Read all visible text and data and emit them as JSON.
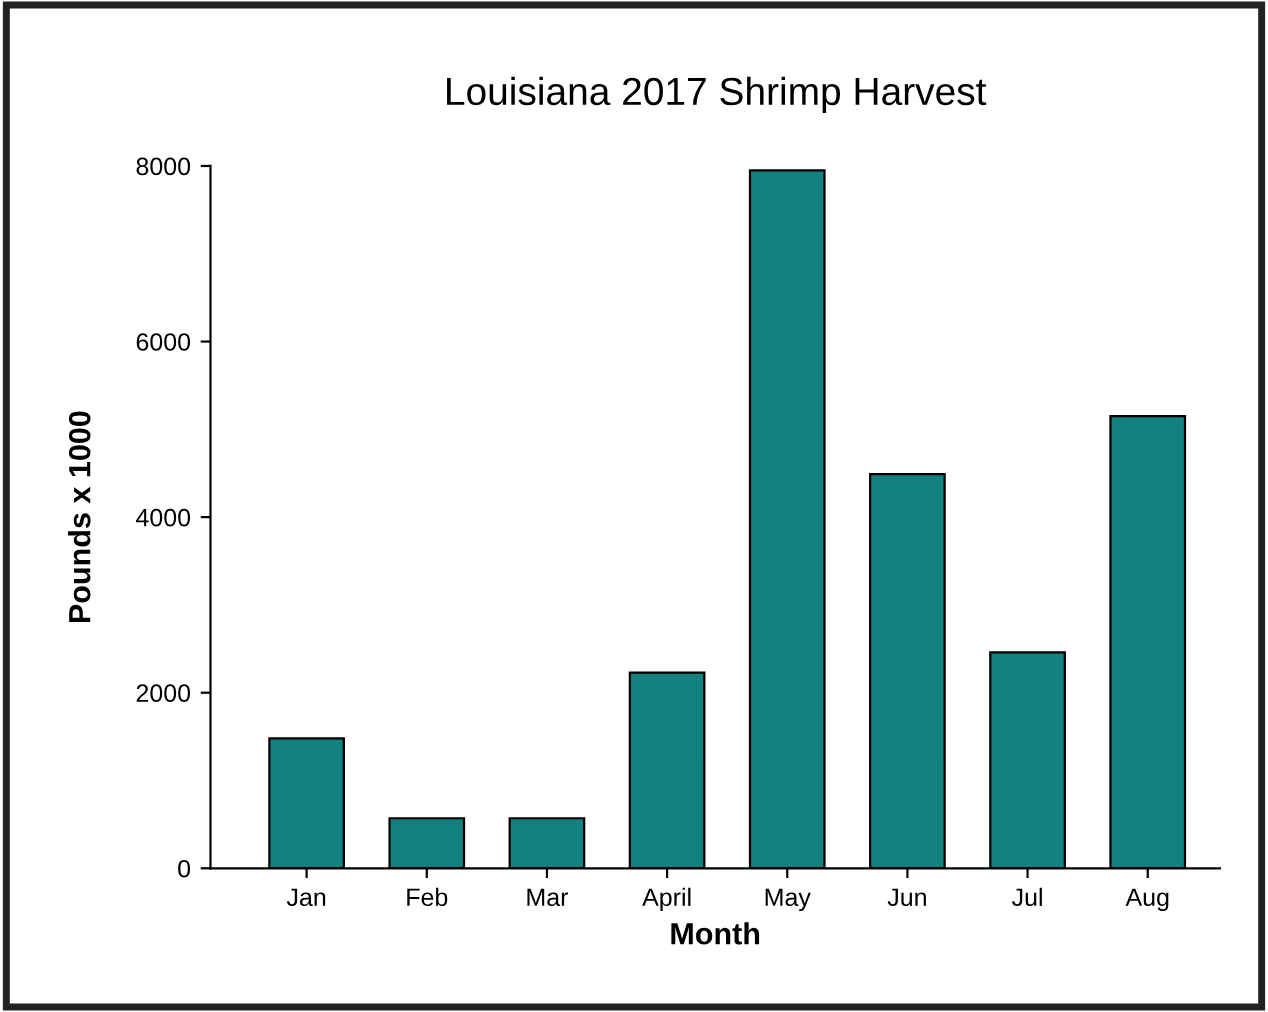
{
  "chart_data": {
    "type": "bar",
    "title": "Louisiana 2017 Shrimp Harvest",
    "xlabel": "Month",
    "ylabel": "Pounds x 1000",
    "categories": [
      "Jan",
      "Feb",
      "Mar",
      "April",
      "May",
      "Jun",
      "Jul",
      "Aug"
    ],
    "values": [
      1480,
      570,
      570,
      2230,
      7950,
      4490,
      2460,
      5150
    ],
    "color": "#13817f",
    "ylim": [
      0,
      8000
    ],
    "yticks": [
      0,
      2000,
      4000,
      6000,
      8000
    ],
    "grid": false,
    "legend": false
  }
}
